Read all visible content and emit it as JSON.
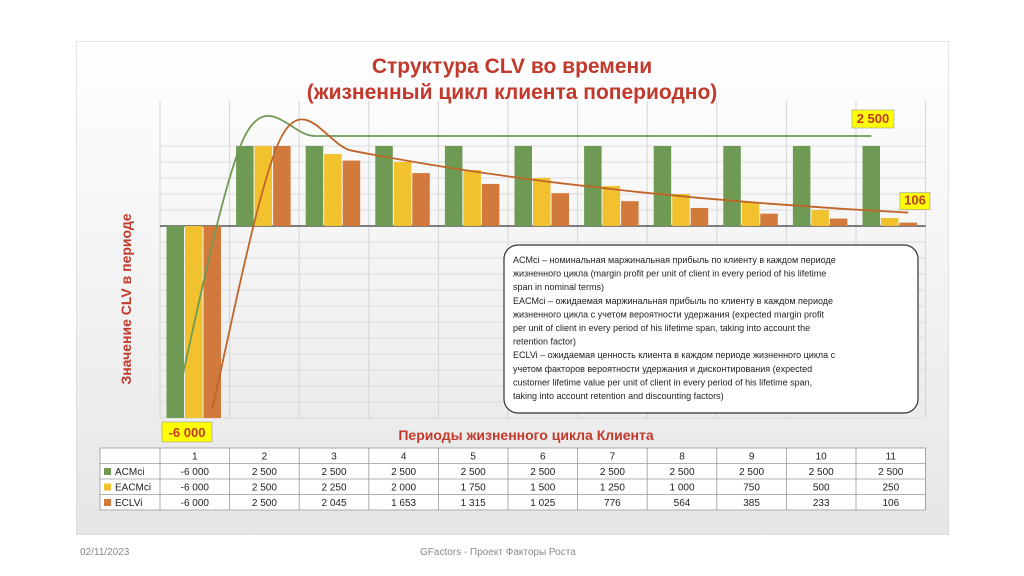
{
  "chart_data": {
    "type": "bar",
    "title": "Структура CLV во времени",
    "subtitle": "(жизненный цикл клиента попериодно)",
    "xlabel": "Периоды жизненного цикла Клиента",
    "ylabel": "Значение CLV в периоде",
    "ylim": [
      -6500,
      3000
    ],
    "grid": true,
    "legend": "table-bottom",
    "categories": [
      "1",
      "2",
      "3",
      "4",
      "5",
      "6",
      "7",
      "8",
      "9",
      "10",
      "11"
    ],
    "series": [
      {
        "name": "ACMci",
        "color": "#6e9a53",
        "values": [
          -6000,
          2500,
          2500,
          2500,
          2500,
          2500,
          2500,
          2500,
          2500,
          2500,
          2500
        ],
        "labels": [
          "-6 000",
          "2 500",
          "2 500",
          "2 500",
          "2 500",
          "2 500",
          "2 500",
          "2 500",
          "2 500",
          "2 500",
          "2 500"
        ]
      },
      {
        "name": "EACMci",
        "color": "#f2c12e",
        "values": [
          -6000,
          2500,
          2250,
          2000,
          1750,
          1500,
          1250,
          1000,
          750,
          500,
          250
        ],
        "labels": [
          "-6 000",
          "2 500",
          "2 250",
          "2 000",
          "1 750",
          "1 500",
          "1 250",
          "1 000",
          "750",
          "500",
          "250"
        ]
      },
      {
        "name": "ECLVi",
        "color": "#d27a3b",
        "values": [
          -6000,
          2500,
          2045,
          1653,
          1315,
          1025,
          776,
          564,
          385,
          233,
          106
        ],
        "labels": [
          "-6 000",
          "2 500",
          "2 045",
          "1 653",
          "1 315",
          "1 025",
          "776",
          "564",
          "385",
          "233",
          "106"
        ]
      }
    ],
    "annotations": [
      {
        "text": "-6 000",
        "x": "1",
        "y": -6000
      },
      {
        "text": "2 500",
        "x": "11",
        "y": 2500
      },
      {
        "text": "106",
        "x": "11",
        "y": 106
      }
    ],
    "legend_box": [
      "ACMci – номинальная маржинальная прибыль по клиенту в каждом периоде",
      "жизненного цикла (margin profit per unit of client in every period of his lifetime",
      "span in nominal terms)",
      "EACMci – ожидаемая маржинальная прибыль по клиенту в каждом периоде",
      "жизненного цикла с учетом вероятности удержания (expected margin profit",
      "per unit of client in every period of his lifetime span, taking into account the",
      "retention factor)",
      "ECLVi – ожидаемая ценность клиента в каждом периоде жизненного цикла с",
      "учетом факторов вероятности удержания и дисконтирования (expected",
      "customer lifetime value per unit of client in every period of his lifetime span,",
      "taking into account retention and discounting factors)"
    ]
  },
  "footer": {
    "date": "02/11/2023",
    "project": "GFactors - Проект Факторы Роста"
  }
}
